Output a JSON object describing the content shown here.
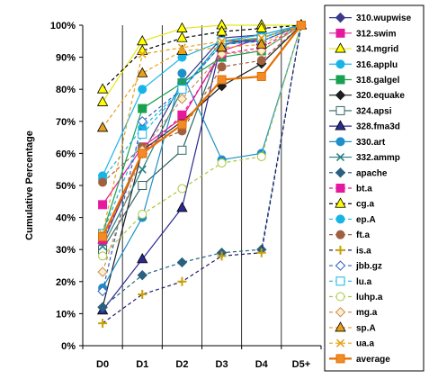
{
  "chart_data": {
    "type": "line",
    "title": "",
    "xlabel": "",
    "ylabel": "Cumulative Percentage",
    "ylim": [
      0,
      100
    ],
    "y_ticks": [
      "0%",
      "10%",
      "20%",
      "30%",
      "40%",
      "50%",
      "60%",
      "70%",
      "80%",
      "90%",
      "100%"
    ],
    "categories": [
      "D0",
      "D1",
      "D2",
      "D3",
      "D4",
      "D5+"
    ],
    "grid": "vertical",
    "legend": "right",
    "series": [
      {
        "name": "310.wupwise",
        "color": "#3a3a8c",
        "dash": "solid",
        "marker": "diamond",
        "fill": "#3a3a8c",
        "values": [
          32,
          60,
          82,
          96,
          97,
          100
        ]
      },
      {
        "name": "312.swim",
        "color": "#e6199e",
        "dash": "solid",
        "marker": "square",
        "fill": "#e6199e",
        "values": [
          44,
          62,
          71,
          92,
          96,
          100
        ]
      },
      {
        "name": "314.mgrid",
        "color": "#e6e619",
        "dash": "solid",
        "marker": "triangle",
        "fill": "#ffff00",
        "values": [
          76,
          95,
          99,
          100,
          100,
          100
        ]
      },
      {
        "name": "316.applu",
        "color": "#19b4e6",
        "dash": "solid",
        "marker": "circle",
        "fill": "#19b4e6",
        "values": [
          53,
          80,
          90,
          95,
          97,
          100
        ]
      },
      {
        "name": "318.galgel",
        "color": "#19a050",
        "dash": "solid",
        "marker": "square",
        "fill": "#19a050",
        "values": [
          35,
          74,
          82,
          90,
          92,
          100
        ]
      },
      {
        "name": "320.equake",
        "color": "#1e1e1e",
        "dash": "solid",
        "marker": "diamond",
        "fill": "#1e1e1e",
        "values": [
          12,
          61,
          70,
          81,
          88,
          100
        ]
      },
      {
        "name": "324.apsi",
        "color": "#336666",
        "dash": "solid",
        "marker": "square",
        "fill": "#ffffff",
        "values": [
          30,
          50,
          61,
          94,
          96,
          100
        ]
      },
      {
        "name": "328.fma3d",
        "color": "#2a2a90",
        "dash": "solid",
        "marker": "triangle",
        "fill": "#2a2a90",
        "values": [
          11,
          27,
          43,
          95,
          95,
          100
        ]
      },
      {
        "name": "330.art",
        "color": "#1e90c8",
        "dash": "solid",
        "marker": "circle",
        "fill": "#1e90c8",
        "values": [
          18,
          40,
          85,
          58,
          60,
          100
        ]
      },
      {
        "name": "332.ammp",
        "color": "#2a8080",
        "dash": "solid",
        "marker": "x",
        "fill": "#2a8080",
        "values": [
          31,
          55,
          80,
          95,
          96,
          100
        ]
      },
      {
        "name": "apache",
        "color": "#2a6080",
        "dash": "dashed",
        "marker": "diamond",
        "fill": "#2a6080",
        "values": [
          12,
          22,
          26,
          29,
          30,
          100
        ]
      },
      {
        "name": "bt.a",
        "color": "#e6199e",
        "dash": "dashed",
        "marker": "square",
        "fill": "#e6199e",
        "values": [
          33,
          60,
          72,
          91,
          93,
          100
        ]
      },
      {
        "name": "cg.a",
        "color": "#000000",
        "dash": "dashed",
        "marker": "triangle",
        "fill": "#ffff00",
        "values": [
          80,
          92,
          96,
          98,
          99,
          100
        ]
      },
      {
        "name": "ep.A",
        "color": "#19b4e6",
        "dash": "dashed",
        "marker": "circle",
        "fill": "#19b4e6",
        "values": [
          52,
          68,
          80,
          94,
          95,
          100
        ]
      },
      {
        "name": "ft.a",
        "color": "#a06040",
        "dash": "dashed",
        "marker": "circle",
        "fill": "#a06040",
        "values": [
          51,
          62,
          67,
          87,
          89,
          100
        ]
      },
      {
        "name": "is.a",
        "color": "#1e1e6e",
        "dash": "dashed",
        "marker": "plus",
        "fill": "#ffff00",
        "values": [
          7,
          16,
          20,
          28,
          29,
          100
        ]
      },
      {
        "name": "jbb.gz",
        "color": "#3060c0",
        "dash": "dashed",
        "marker": "diamond",
        "fill": "#ffffff",
        "values": [
          17,
          70,
          80,
          94,
          95,
          100
        ]
      },
      {
        "name": "lu.a",
        "color": "#19b4e6",
        "dash": "dashed",
        "marker": "square",
        "fill": "#ffffff",
        "values": [
          35,
          66,
          80,
          95,
          96,
          100
        ]
      },
      {
        "name": "luhp.a",
        "color": "#a8c840",
        "dash": "dashed",
        "marker": "circle",
        "fill": "#ffffff",
        "values": [
          28,
          41,
          49,
          57,
          59,
          100
        ]
      },
      {
        "name": "mg.a",
        "color": "#c89060",
        "dash": "dashed",
        "marker": "diamond",
        "fill": "#ffeec8",
        "values": [
          23,
          61,
          77,
          91,
          92,
          100
        ]
      },
      {
        "name": "sp.A",
        "color": "#e6a019",
        "dash": "dashed",
        "marker": "triangle",
        "fill": "#e6a019",
        "values": [
          68,
          85,
          92,
          93,
          94,
          100
        ]
      },
      {
        "name": "ua.a",
        "color": "#e6a019",
        "dash": "dashed",
        "marker": "x",
        "fill": "#e6a019",
        "values": [
          35,
          91,
          93,
          95,
          96,
          100
        ]
      },
      {
        "name": "average",
        "color": "#e66e00",
        "dash": "solid",
        "marker": "square",
        "fill": "#f08c28",
        "values": [
          34,
          60,
          69,
          83,
          84,
          100
        ]
      }
    ]
  }
}
